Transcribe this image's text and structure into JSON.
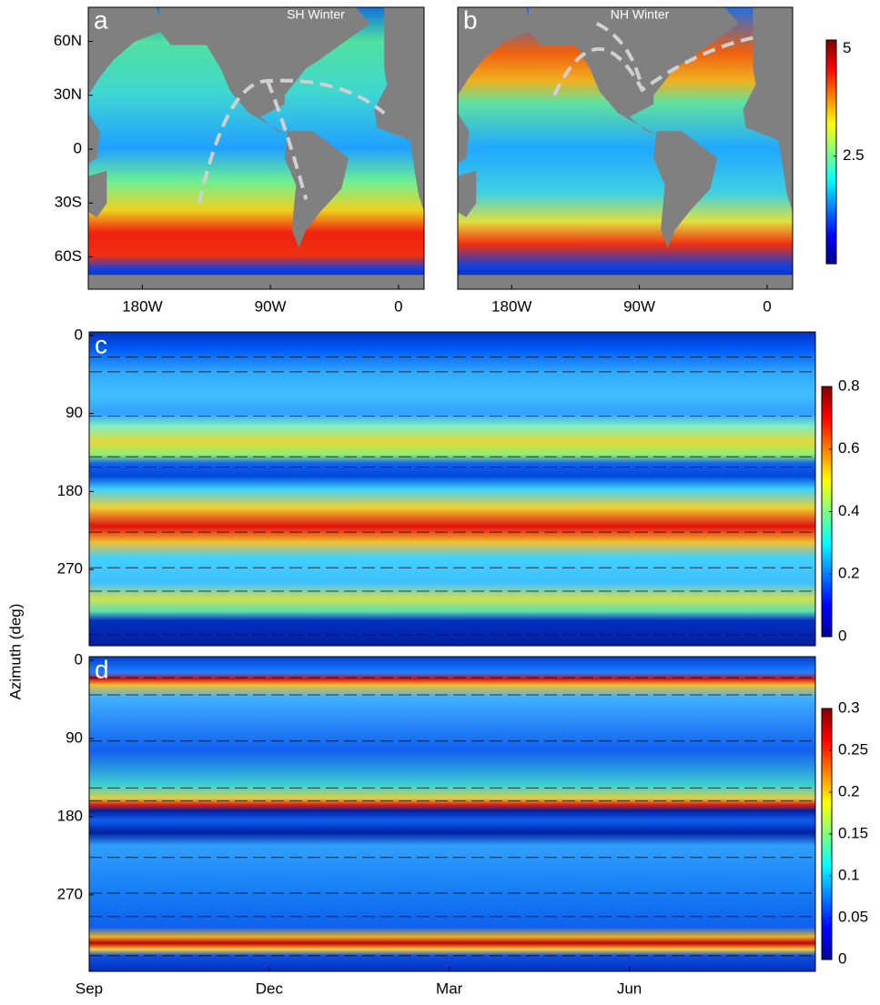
{
  "chart_data": [
    {
      "type": "map",
      "panel_label": "a",
      "annotation": "SH Winter",
      "xlim": [
        -218,
        18
      ],
      "ylim": [
        -78,
        79
      ],
      "xticks": [
        {
          "value": -180,
          "label": "180W"
        },
        {
          "value": -90,
          "label": "90W"
        },
        0
      ],
      "yticks": [
        {
          "value": 60,
          "label": "60N"
        },
        {
          "value": 30,
          "label": "30N"
        },
        0,
        {
          "value": -30,
          "label": "30S"
        },
        {
          "value": -60,
          "label": "60S"
        }
      ]
    },
    {
      "type": "map",
      "panel_label": "b",
      "annotation": "NH Winter",
      "xlim": [
        -218,
        18
      ],
      "ylim": [
        -78,
        79
      ],
      "xticks": [
        {
          "value": -180,
          "label": "180W"
        },
        {
          "value": -90,
          "label": "90W"
        },
        0
      ],
      "colorbar": {
        "lim": [
          0,
          5.2
        ],
        "ticks": [
          2.5,
          5
        ]
      }
    },
    {
      "type": "heatmap",
      "panel_label": "c",
      "xlim": [
        0,
        12.1
      ],
      "ylim": [
        -4,
        358
      ],
      "yticks": [
        0,
        90,
        180,
        270
      ],
      "colorbar": {
        "lim": [
          0,
          0.8
        ],
        "ticks": [
          0,
          0.2,
          0.4,
          0.6,
          0.8
        ]
      }
    },
    {
      "type": "heatmap",
      "panel_label": "d",
      "ylabel": "Azimuth (deg)",
      "xlim": [
        0,
        12.1
      ],
      "ylim": [
        -4,
        358
      ],
      "xticks": [
        {
          "value": 0,
          "label": "Sep"
        },
        {
          "value": 3,
          "label": "Dec"
        },
        {
          "value": 6,
          "label": "Mar"
        },
        {
          "value": 9,
          "label": "Jun"
        }
      ],
      "yticks": [
        0,
        90,
        180,
        270
      ],
      "colorbar": {
        "lim": [
          0,
          0.3
        ],
        "ticks": [
          0,
          0.05,
          0.1,
          0.15,
          0.2,
          0.25,
          0.3
        ]
      }
    }
  ]
}
